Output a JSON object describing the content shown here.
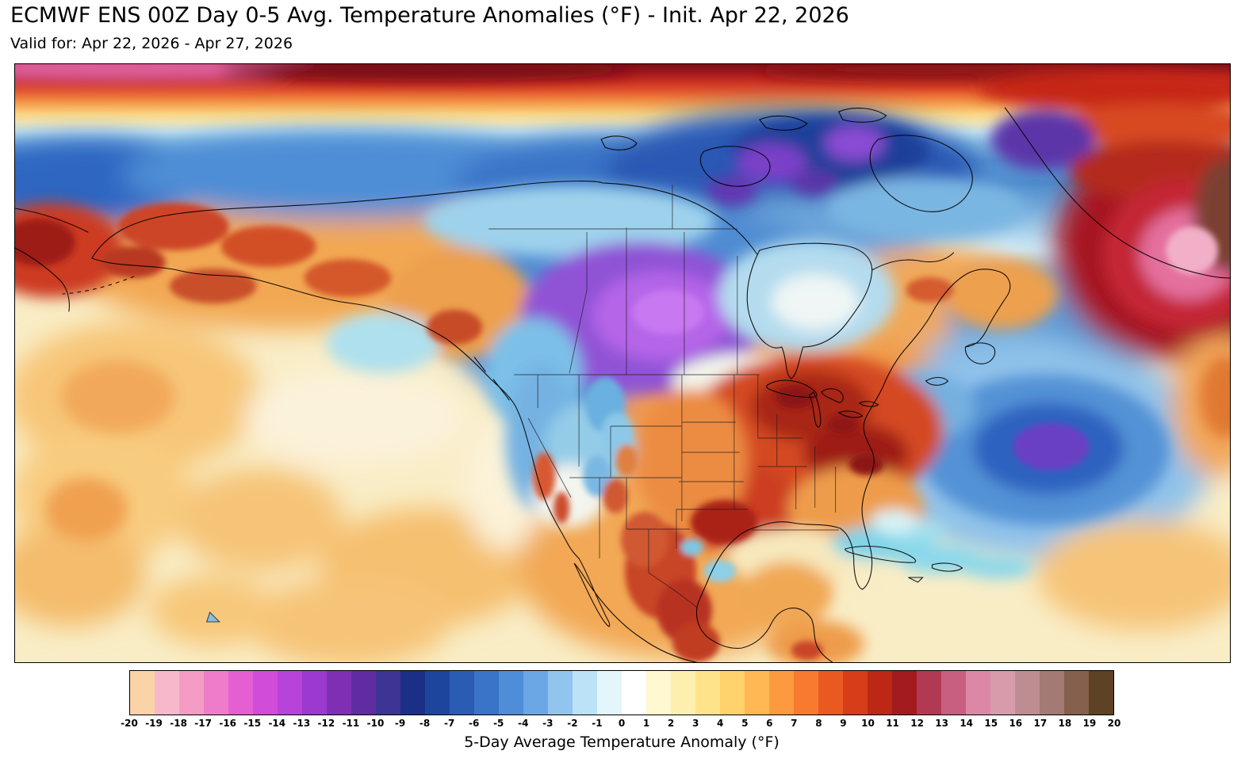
{
  "header": {
    "title": "ECMWF ENS 00Z Day 0-5 Avg. Temperature Anomalies (°F) - Init. Apr 22, 2026",
    "subtitle": "Valid for: Apr 22, 2026 - Apr 27, 2026"
  },
  "colorbar": {
    "label": "5-Day Average Temperature Anomaly (°F)",
    "unit": "°F",
    "min": -20,
    "max": 20,
    "ticks": [
      "-20",
      "-19",
      "-18",
      "-17",
      "-16",
      "-15",
      "-14",
      "-13",
      "-12",
      "-11",
      "-10",
      "-9",
      "-8",
      "-7",
      "-6",
      "-5",
      "-4",
      "-3",
      "-2",
      "-1",
      "0",
      "1",
      "2",
      "3",
      "4",
      "5",
      "6",
      "7",
      "8",
      "9",
      "10",
      "11",
      "12",
      "13",
      "14",
      "15",
      "16",
      "17",
      "18",
      "19",
      "20"
    ],
    "colors": [
      "#fbd3a8",
      "#f8b8cc",
      "#f49cc4",
      "#ee7cca",
      "#e55ed2",
      "#d14cda",
      "#b843da",
      "#9c39cf",
      "#7e2fb4",
      "#5f2da1",
      "#3d3493",
      "#1c2f87",
      "#1e459e",
      "#2a5cb4",
      "#3a74c8",
      "#4f8dd8",
      "#6ba7e5",
      "#91c4ef",
      "#bce2f7",
      "#e2f6fb",
      "#ffffff",
      "#fff8d0",
      "#ffefae",
      "#ffe38a",
      "#ffd26b",
      "#ffb854",
      "#fd9a40",
      "#f77a2e",
      "#ea5a20",
      "#d63d18",
      "#bc2815",
      "#a21b1d",
      "#b13a52",
      "#c95f80",
      "#dd87a6",
      "#d79bab",
      "#bd8d92",
      "#a37a74",
      "#85604c",
      "#5e4226"
    ]
  },
  "chart_data": {
    "type": "heatmap",
    "title": "ECMWF ENS 00Z Day 0-5 Avg. Temperature Anomalies (°F) - Init. Apr 22, 2026",
    "valid_period": "Apr 22, 2026 - Apr 27, 2026",
    "region": "North America",
    "variable": "5-Day Average Temperature Anomaly",
    "units": "°F",
    "value_range": [
      -20,
      20
    ],
    "notable_features": [
      {
        "area": "Western Canada (Prairies)",
        "sign": "cold",
        "approx_anomaly_f": -15
      },
      {
        "area": "Canadian Arctic Archipelago",
        "sign": "cold",
        "approx_anomaly_f": -10
      },
      {
        "area": "Midwest / Ohio Valley US",
        "sign": "warm",
        "approx_anomaly_f": 11
      },
      {
        "area": "Southern Plains / Texas",
        "sign": "warm",
        "approx_anomaly_f": 9
      },
      {
        "area": "Alaska",
        "sign": "warm",
        "approx_anomaly_f": 6
      },
      {
        "area": "Greenland",
        "sign": "warm",
        "approx_anomaly_f": 14
      },
      {
        "area": "Northwest Atlantic",
        "sign": "cold",
        "approx_anomaly_f": -9
      },
      {
        "area": "High-latitude Arctic band",
        "sign": "warm",
        "approx_anomaly_f": 10
      }
    ]
  }
}
